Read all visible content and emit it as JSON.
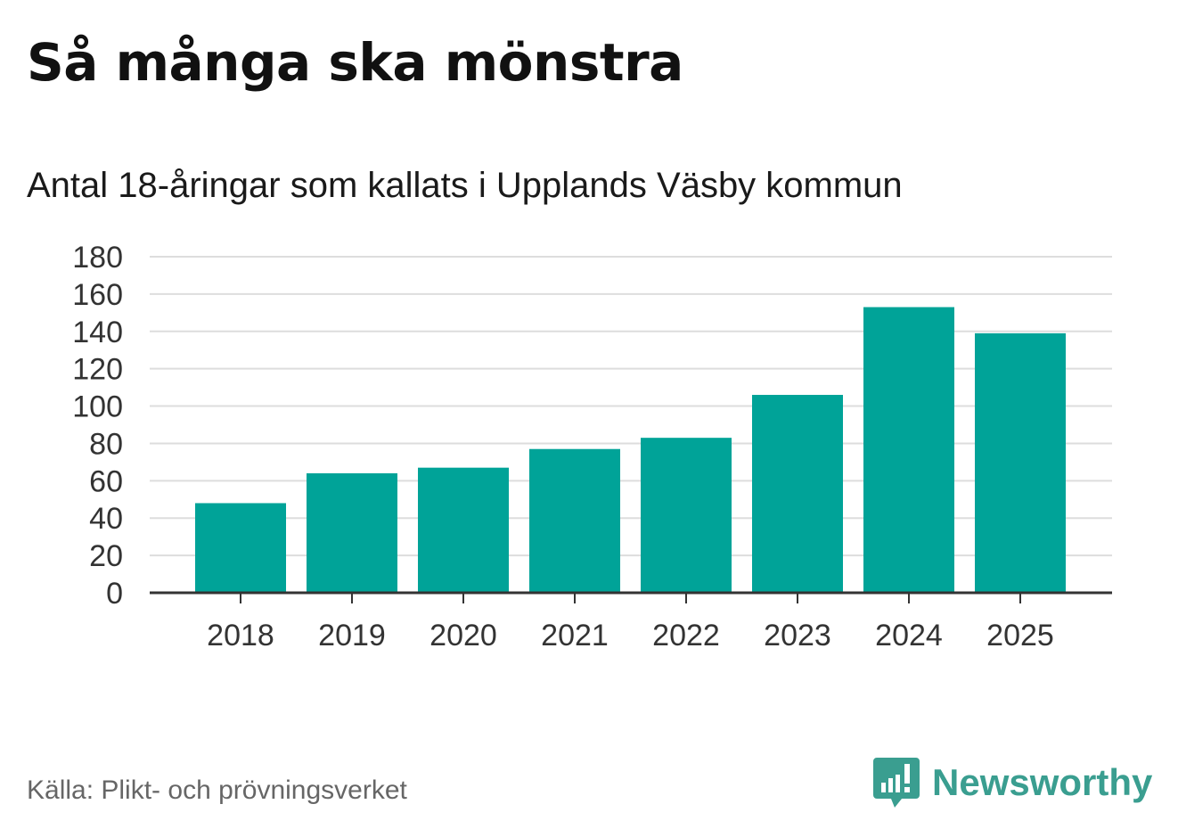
{
  "chart_data": {
    "type": "bar",
    "title": "Så många ska mönstra",
    "subtitle": "Antal 18-åringar som kallats i Upplands Väsby kommun",
    "categories": [
      "2018",
      "2019",
      "2020",
      "2021",
      "2022",
      "2023",
      "2024",
      "2025"
    ],
    "values": [
      48,
      64,
      67,
      77,
      83,
      106,
      153,
      139
    ],
    "yticks": [
      "0",
      "20",
      "40",
      "60",
      "80",
      "100",
      "120",
      "140",
      "160",
      "180"
    ],
    "ylim": [
      0,
      180
    ],
    "xlabel": "",
    "ylabel": "",
    "grid": true,
    "bar_color": "#00a398"
  },
  "footer": {
    "source": "Källa: Plikt- och prövningsverket",
    "brand": "Newsworthy",
    "brand_icon": "newsworthy-logo-icon",
    "brand_color": "#3a9e90"
  }
}
